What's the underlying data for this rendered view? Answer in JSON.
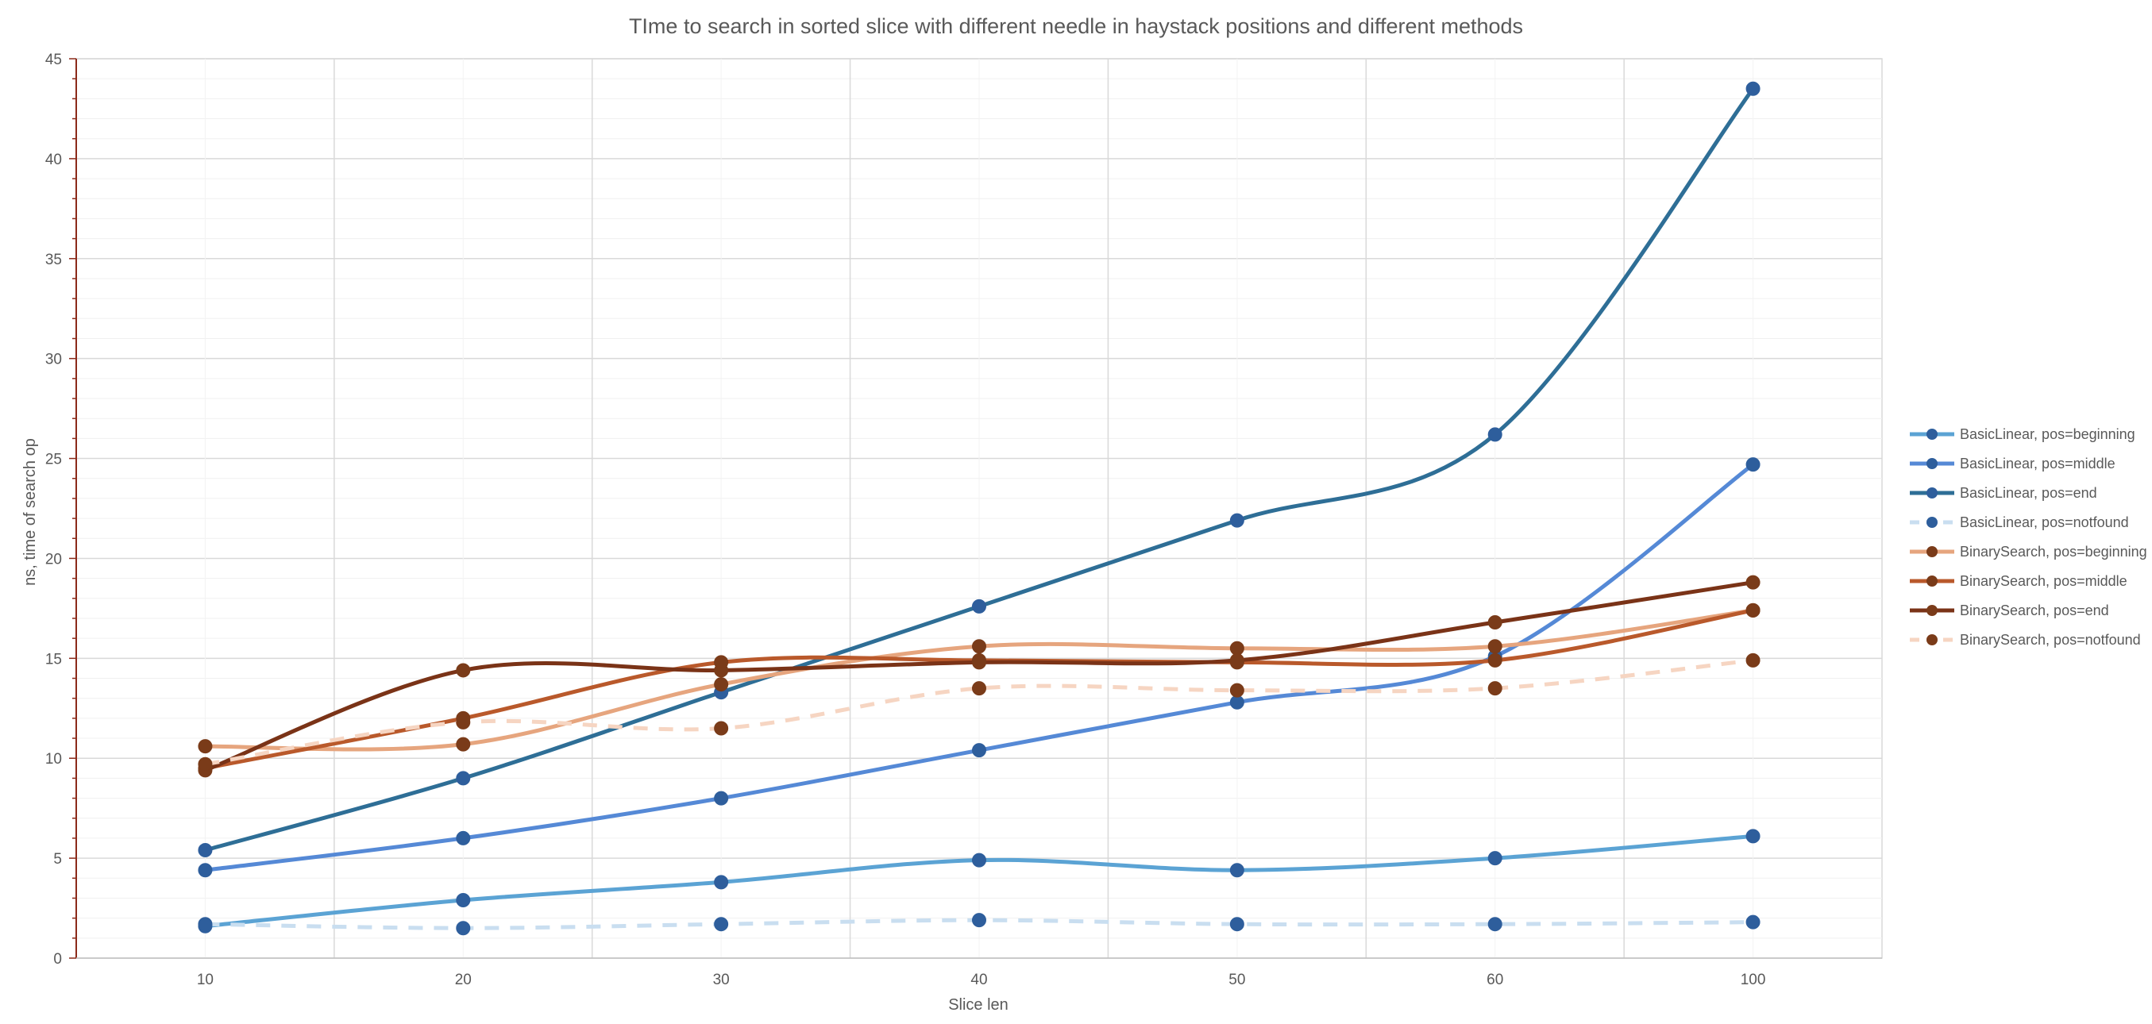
{
  "chart_data": {
    "type": "line",
    "title": "TIme to search in sorted slice with different needle in haystack positions and different methods",
    "xlabel": "Slice len",
    "ylabel": "ns, time of search op",
    "categories": [
      "10",
      "20",
      "30",
      "40",
      "50",
      "60",
      "100"
    ],
    "ylim": [
      0,
      45
    ],
    "ytick_step": 5,
    "grid": "on",
    "legend_position": "right",
    "series": [
      {
        "name": "BasicLinear, pos=beginning",
        "color": "#5ba3d4",
        "marker_color": "#2e5e9c",
        "dashed": false,
        "values": [
          1.6,
          2.9,
          3.8,
          4.9,
          4.4,
          5.0,
          6.1
        ]
      },
      {
        "name": "BasicLinear, pos=middle",
        "color": "#5589d6",
        "marker_color": "#2e5e9c",
        "dashed": false,
        "values": [
          4.4,
          6.0,
          8.0,
          10.4,
          12.8,
          15.1,
          24.7
        ]
      },
      {
        "name": "BasicLinear, pos=end",
        "color": "#2e6e96",
        "marker_color": "#2e5e9c",
        "dashed": false,
        "values": [
          5.4,
          9.0,
          13.3,
          17.6,
          21.9,
          26.2,
          43.5
        ]
      },
      {
        "name": "BasicLinear, pos=notfound",
        "color": "#c9def0",
        "marker_color": "#2e5e9c",
        "dashed": true,
        "values": [
          1.7,
          1.5,
          1.7,
          1.9,
          1.7,
          1.7,
          1.8
        ]
      },
      {
        "name": "BinarySearch, pos=beginning",
        "color": "#e6a57e",
        "marker_color": "#7a3b19",
        "dashed": false,
        "values": [
          10.6,
          10.7,
          13.7,
          15.6,
          15.5,
          15.6,
          17.4
        ]
      },
      {
        "name": "BinarySearch, pos=middle",
        "color": "#b9592b",
        "marker_color": "#7a3b19",
        "dashed": false,
        "values": [
          9.5,
          12.0,
          14.8,
          14.9,
          14.8,
          14.9,
          17.4
        ]
      },
      {
        "name": "BinarySearch, pos=end",
        "color": "#7a3317",
        "marker_color": "#7a3b19",
        "dashed": false,
        "values": [
          9.4,
          14.4,
          14.4,
          14.8,
          14.9,
          16.8,
          18.8
        ]
      },
      {
        "name": "BinarySearch, pos=notfound",
        "color": "#f6d5c2",
        "marker_color": "#7a3b19",
        "dashed": true,
        "values": [
          9.7,
          11.8,
          11.5,
          13.5,
          13.4,
          13.5,
          14.9
        ]
      }
    ]
  }
}
